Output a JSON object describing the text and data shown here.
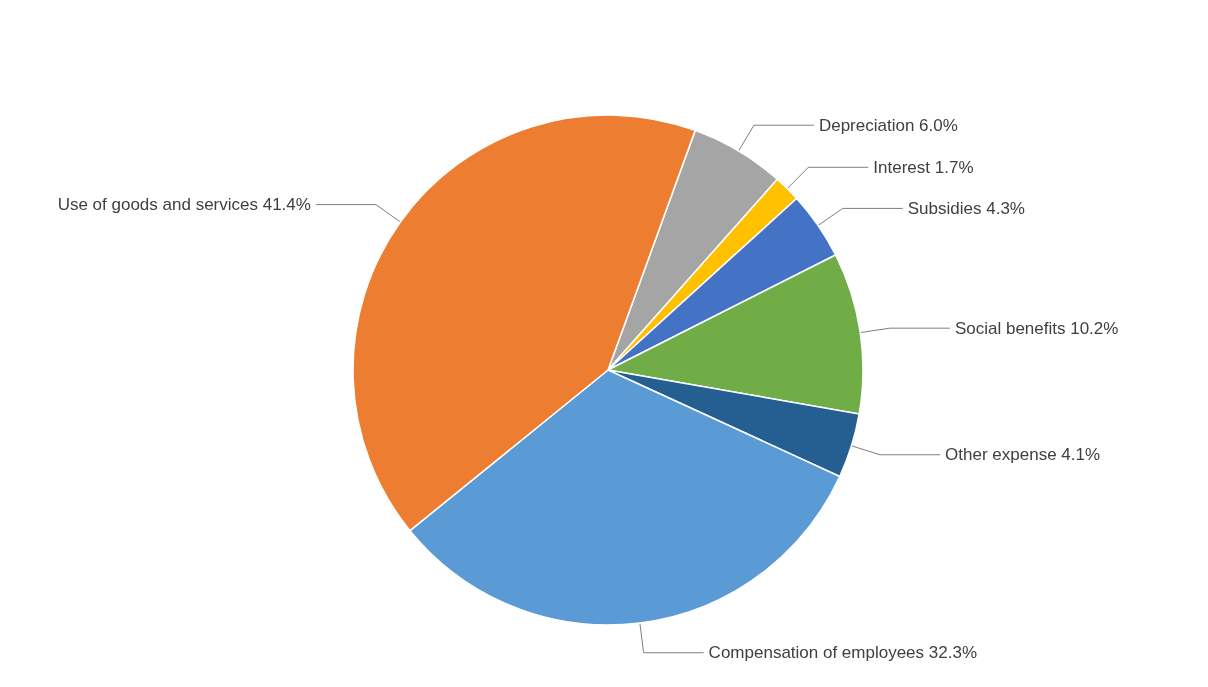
{
  "chart_data": {
    "type": "pie",
    "categories": [
      "Depreciation",
      "Interest",
      "Subsidies",
      "Social benefits",
      "Other expense",
      "Compensation of employees",
      "Use of goods and services"
    ],
    "values": [
      6.0,
      1.7,
      4.3,
      10.2,
      4.1,
      32.3,
      41.4
    ],
    "value_labels": [
      "6.0%",
      "1.7%",
      "4.3%",
      "10.2%",
      "4.1%",
      "32.3%",
      "41.4%"
    ],
    "colors": [
      "#a5a5a5",
      "#ffc000",
      "#4472c4",
      "#70ad47",
      "#255e91",
      "#5b9bd5",
      "#ed7d31"
    ],
    "legend": false
  }
}
